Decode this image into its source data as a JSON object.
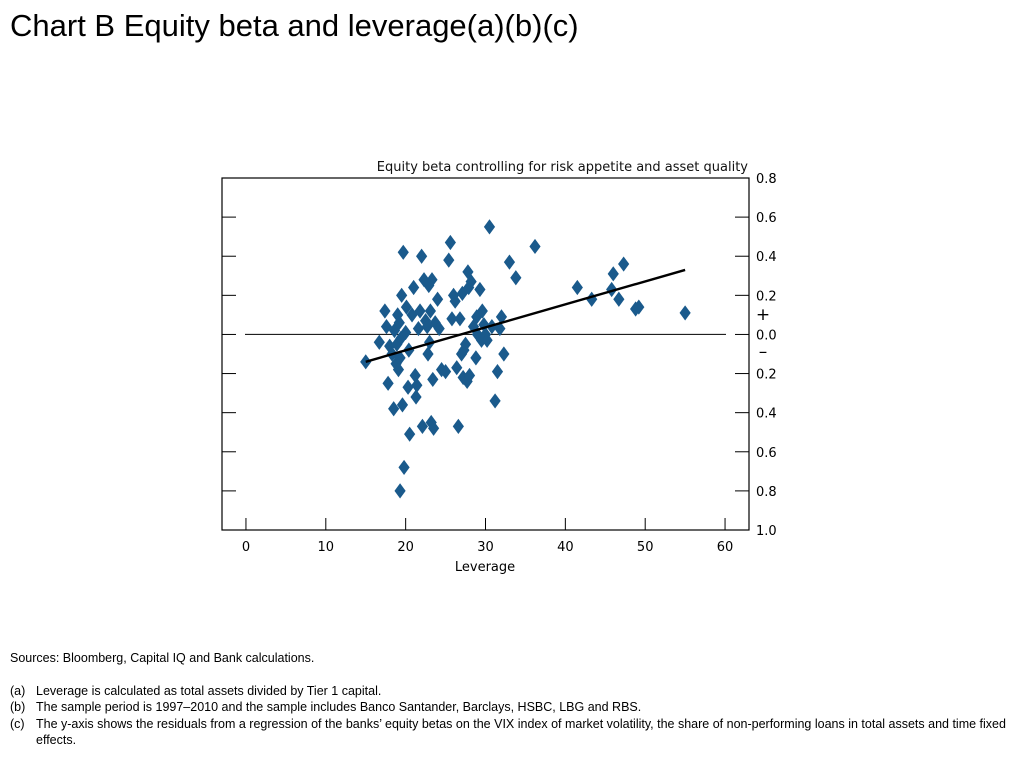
{
  "page": {
    "title": "Chart B  Equity beta and leverage(a)(b)(c)"
  },
  "chart_data": {
    "type": "scatter",
    "title": "Equity beta controlling for risk appetite and asset quality",
    "xlabel": "Leverage",
    "ylabel": "",
    "xlim": [
      -3,
      63
    ],
    "ylim": [
      -1.0,
      0.8
    ],
    "x_ticks": [
      0,
      10,
      20,
      30,
      40,
      50,
      60
    ],
    "x_tick_labels": [
      "0",
      "10",
      "20",
      "30",
      "40",
      "50",
      "60"
    ],
    "y_ticks": [
      0.8,
      0.6,
      0.4,
      0.2,
      0.0,
      -0.2,
      -0.4,
      -0.6,
      -0.8,
      -1.0
    ],
    "y_tick_labels": [
      "0.8",
      "0.6",
      "0.4",
      "0.2",
      "0.0",
      "0.2",
      "0.4",
      "0.6",
      "0.8",
      "1.0"
    ],
    "sign_labels": {
      "plus": "+",
      "minus": "–"
    },
    "grid": false,
    "marker": "diamond",
    "point_color": "#1a5a8c",
    "zero_line": true,
    "trend_line": {
      "x": [
        15.0,
        55.0
      ],
      "y": [
        -0.14,
        0.33
      ]
    },
    "points": [
      [
        15.0,
        -0.14
      ],
      [
        16.7,
        -0.04
      ],
      [
        17.4,
        0.12
      ],
      [
        17.6,
        0.04
      ],
      [
        17.8,
        -0.25
      ],
      [
        18.0,
        -0.06
      ],
      [
        18.3,
        -0.1
      ],
      [
        18.5,
        -0.38
      ],
      [
        18.6,
        0.02
      ],
      [
        18.8,
        -0.15
      ],
      [
        18.9,
        -0.05
      ],
      [
        19.0,
        0.1
      ],
      [
        19.1,
        -0.18
      ],
      [
        19.2,
        0.06
      ],
      [
        19.3,
        -0.12
      ],
      [
        19.4,
        -0.02
      ],
      [
        19.5,
        0.2
      ],
      [
        19.6,
        -0.36
      ],
      [
        19.7,
        0.42
      ],
      [
        19.8,
        -0.68
      ],
      [
        19.3,
        -0.8
      ],
      [
        20.0,
        0.01
      ],
      [
        20.1,
        0.14
      ],
      [
        20.3,
        -0.27
      ],
      [
        20.4,
        -0.08
      ],
      [
        20.5,
        -0.51
      ],
      [
        20.8,
        0.1
      ],
      [
        21.0,
        0.24
      ],
      [
        21.2,
        -0.21
      ],
      [
        21.3,
        -0.32
      ],
      [
        21.4,
        -0.26
      ],
      [
        21.6,
        0.03
      ],
      [
        21.8,
        0.12
      ],
      [
        22.0,
        0.4
      ],
      [
        22.1,
        -0.47
      ],
      [
        22.3,
        0.28
      ],
      [
        22.5,
        0.07
      ],
      [
        22.7,
        0.04
      ],
      [
        22.8,
        -0.1
      ],
      [
        22.9,
        0.25
      ],
      [
        23.0,
        -0.04
      ],
      [
        23.1,
        0.12
      ],
      [
        23.2,
        -0.45
      ],
      [
        23.3,
        0.28
      ],
      [
        23.4,
        -0.23
      ],
      [
        23.5,
        -0.48
      ],
      [
        23.7,
        0.06
      ],
      [
        24.0,
        0.18
      ],
      [
        24.2,
        0.03
      ],
      [
        24.5,
        -0.18
      ],
      [
        25.0,
        -0.19
      ],
      [
        25.4,
        0.38
      ],
      [
        25.6,
        0.47
      ],
      [
        25.8,
        0.08
      ],
      [
        26.0,
        0.2
      ],
      [
        26.2,
        0.17
      ],
      [
        26.4,
        -0.17
      ],
      [
        26.6,
        -0.47
      ],
      [
        26.8,
        0.08
      ],
      [
        27.0,
        -0.1
      ],
      [
        27.1,
        0.21
      ],
      [
        27.2,
        -0.22
      ],
      [
        27.3,
        -0.08
      ],
      [
        27.5,
        -0.05
      ],
      [
        27.7,
        -0.24
      ],
      [
        27.8,
        0.32
      ],
      [
        27.9,
        0.24
      ],
      [
        28.0,
        -0.21
      ],
      [
        28.2,
        0.27
      ],
      [
        28.5,
        0.04
      ],
      [
        28.8,
        -0.12
      ],
      [
        28.9,
        0.09
      ],
      [
        29.0,
        0.0
      ],
      [
        29.3,
        0.23
      ],
      [
        29.5,
        -0.03
      ],
      [
        29.6,
        0.12
      ],
      [
        29.8,
        0.05
      ],
      [
        30.0,
        0.0
      ],
      [
        30.2,
        -0.03
      ],
      [
        30.5,
        0.55
      ],
      [
        30.8,
        0.04
      ],
      [
        31.2,
        -0.34
      ],
      [
        31.5,
        -0.19
      ],
      [
        31.8,
        0.03
      ],
      [
        32.0,
        0.09
      ],
      [
        32.3,
        -0.1
      ],
      [
        33.0,
        0.37
      ],
      [
        33.8,
        0.29
      ],
      [
        36.2,
        0.45
      ],
      [
        41.5,
        0.24
      ],
      [
        43.3,
        0.18
      ],
      [
        45.8,
        0.23
      ],
      [
        46.0,
        0.31
      ],
      [
        46.7,
        0.18
      ],
      [
        47.3,
        0.36
      ],
      [
        48.8,
        0.13
      ],
      [
        49.2,
        0.14
      ],
      [
        55.0,
        0.11
      ]
    ]
  },
  "notes": {
    "sources": "Sources:  Bloomberg, Capital IQ and Bank calculations.",
    "items": [
      {
        "mark": "(a)",
        "text": "Leverage is calculated as total assets divided by Tier 1 capital."
      },
      {
        "mark": "(b)",
        "text": "The sample period is 1997–2010 and the sample includes Banco Santander, Barclays, HSBC, LBG and RBS."
      },
      {
        "mark": "(c)",
        "text": "The y-axis shows the residuals from a regression of the banks’ equity betas on the VIX index of market volatility, the share of non-performing loans in total assets and time fixed effects."
      }
    ]
  }
}
